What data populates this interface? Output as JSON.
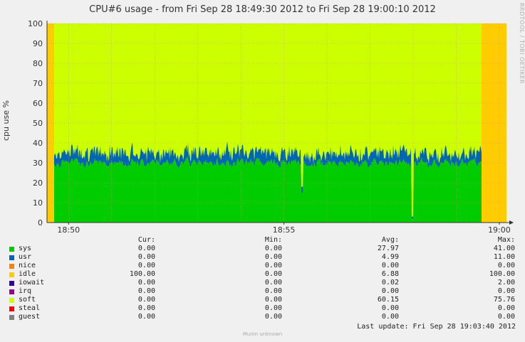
{
  "chart_data": {
    "type": "area",
    "title": "CPU#6 usage - from Fri Sep 28 18:49:30 2012 to Fri Sep 28 19:00:10 2012",
    "xlabel": "",
    "ylabel": "cpu use %",
    "ylim": [
      0,
      100
    ],
    "yticks": [
      0,
      10,
      20,
      30,
      40,
      50,
      60,
      70,
      80,
      90,
      100
    ],
    "xlim": [
      "18:49:30",
      "19:00:10"
    ],
    "xticks": [
      "18:50",
      "18:55",
      "19:00"
    ],
    "grid": true,
    "stacked": true,
    "side_credit": "RRDTOOL / TOBI OETIKER",
    "legend_headers": {
      "cur": "Cur:",
      "min": "Min:",
      "avg": "Avg:",
      "max": "Max:"
    },
    "series": [
      {
        "name": "sys",
        "color": "#00cc00",
        "cur": "0.00",
        "min": "0.00",
        "avg": "27.97",
        "max": "41.00"
      },
      {
        "name": "usr",
        "color": "#0066b3",
        "cur": "0.00",
        "min": "0.00",
        "avg": "4.99",
        "max": "11.00"
      },
      {
        "name": "nice",
        "color": "#ff8000",
        "cur": "0.00",
        "min": "0.00",
        "avg": "0.00",
        "max": "0.00"
      },
      {
        "name": "idle",
        "color": "#ffcc00",
        "cur": "100.00",
        "min": "0.00",
        "avg": "6.88",
        "max": "100.00"
      },
      {
        "name": "iowait",
        "color": "#330099",
        "cur": "0.00",
        "min": "0.00",
        "avg": "0.02",
        "max": "2.00"
      },
      {
        "name": "irq",
        "color": "#990099",
        "cur": "0.00",
        "min": "0.00",
        "avg": "0.00",
        "max": "0.00"
      },
      {
        "name": "soft",
        "color": "#ccff00",
        "cur": "0.00",
        "min": "0.00",
        "avg": "60.15",
        "max": "75.76"
      },
      {
        "name": "steal",
        "color": "#ff0000",
        "cur": "0.00",
        "min": "0.00",
        "avg": "0.00",
        "max": "0.00"
      },
      {
        "name": "guest",
        "color": "#808080",
        "cur": "0.00",
        "min": "0.00",
        "avg": "0.00",
        "max": "0.00"
      }
    ],
    "last_update": "Last update: Fri Sep 28 19:03:40 2012",
    "footer": "Munin unknown"
  }
}
